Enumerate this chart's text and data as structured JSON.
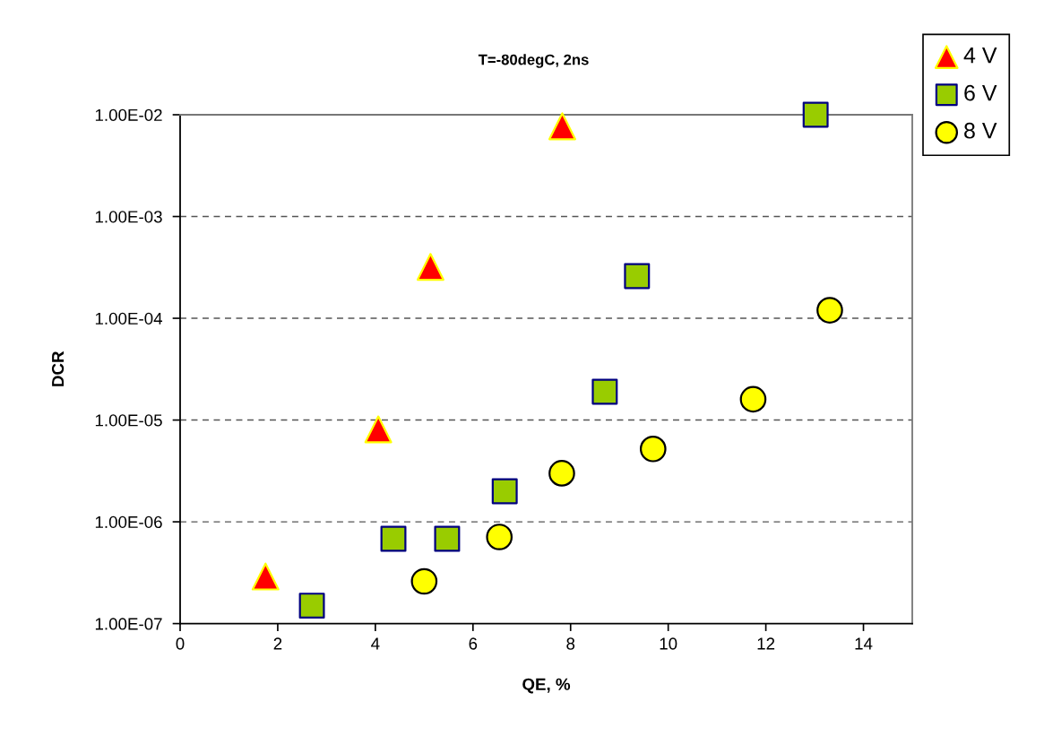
{
  "chart_data": {
    "type": "scatter",
    "title": "T=-80degC, 2ns",
    "xlabel": "QE, %",
    "ylabel": "DCR",
    "log": "y",
    "xlim": [
      0,
      15
    ],
    "xticks": [
      0,
      2,
      4,
      6,
      8,
      10,
      12,
      14
    ],
    "ylim": [
      1e-07,
      0.01
    ],
    "yticks": [
      {
        "value": 1e-07,
        "label": "1.00E-07"
      },
      {
        "value": 1e-06,
        "label": "1.00E-06"
      },
      {
        "value": 1e-05,
        "label": "1.00E-05"
      },
      {
        "value": 0.0001,
        "label": "1.00E-04"
      },
      {
        "value": 0.001,
        "label": "1.00E-03"
      },
      {
        "value": 0.01,
        "label": "1.00E-02"
      }
    ],
    "grid": "y",
    "legend": "top right",
    "series": [
      {
        "name": "4 V",
        "color": "#ff0000",
        "marker": "triangle",
        "x": [
          1.75,
          4.06,
          5.13,
          7.83
        ],
        "values": [
          2.9e-07,
          8.1e-06,
          0.00032,
          0.0077
        ]
      },
      {
        "name": "6 V",
        "color": "#99cc00",
        "marker": "square",
        "x": [
          2.7,
          4.37,
          5.47,
          6.65,
          8.7,
          9.36,
          13.02
        ],
        "values": [
          1.5e-07,
          6.8e-07,
          6.8e-07,
          2e-06,
          1.9e-05,
          0.00026,
          0.01
        ]
      },
      {
        "name": "8 V",
        "color": "#ffff00",
        "marker": "circle",
        "x": [
          5.0,
          6.54,
          7.82,
          9.69,
          11.74,
          13.31
        ],
        "values": [
          2.6e-07,
          7.1e-07,
          3e-06,
          5.2e-06,
          1.6e-05,
          0.00012
        ]
      }
    ]
  }
}
